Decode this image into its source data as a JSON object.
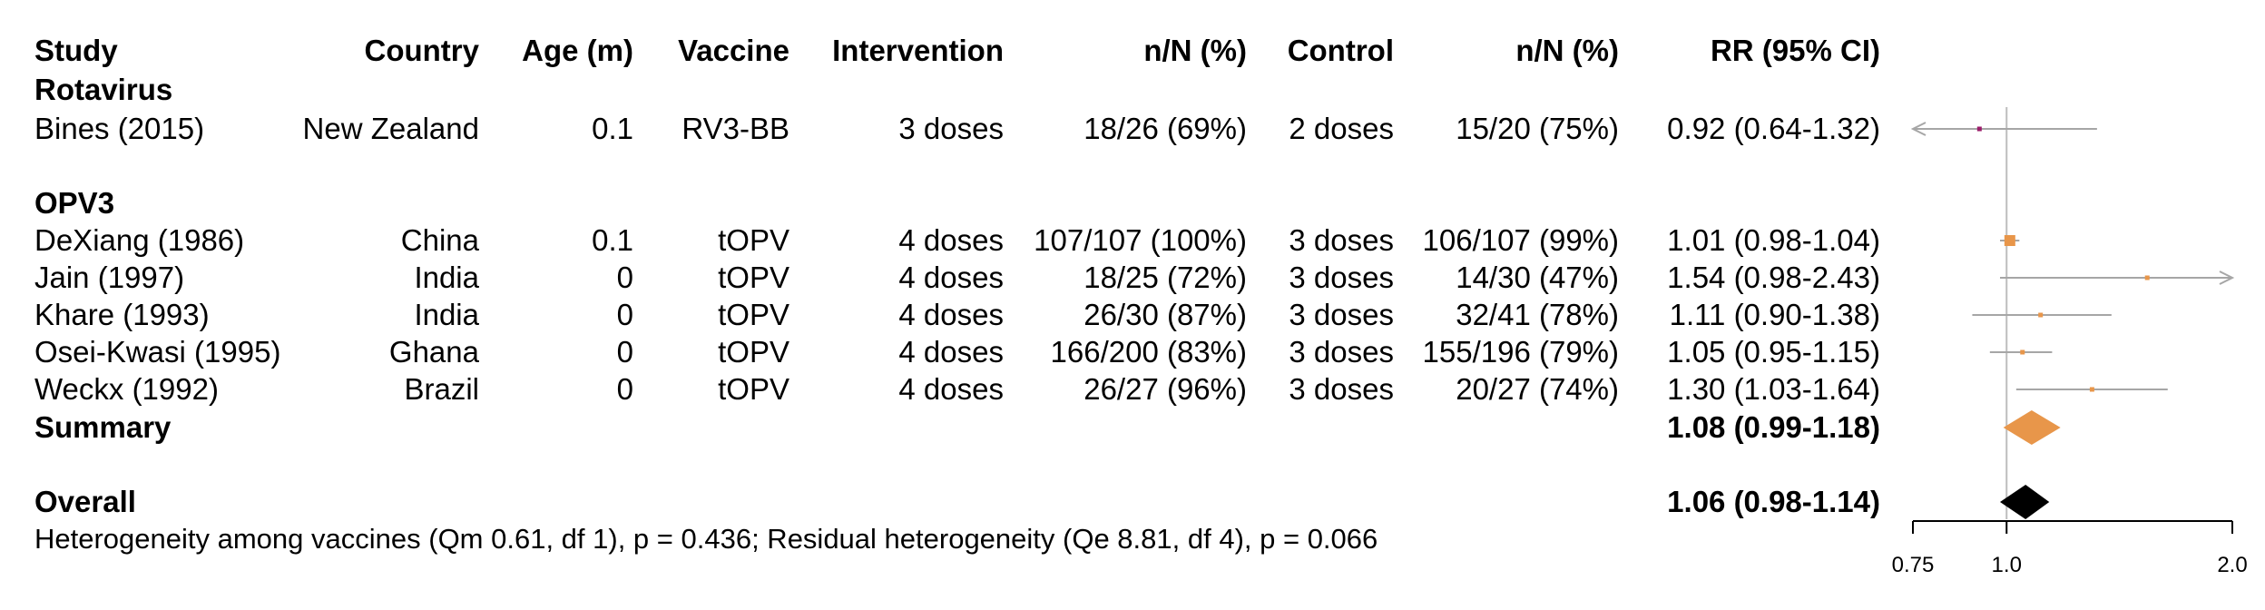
{
  "headers": {
    "study": "Study",
    "country": "Country",
    "age": "Age (m)",
    "vaccine": "Vaccine",
    "intervention": "Intervention",
    "int_nN": "n/N (%)",
    "control": "Control",
    "ctl_nN": "n/N (%)",
    "rr": "RR (95% CI)"
  },
  "groups": [
    {
      "label": "Rotavirus",
      "studies": [
        {
          "study": "Bines (2015)",
          "country": "New Zealand",
          "age": "0.1",
          "vaccine": "RV3-BB",
          "intervention": "3 doses",
          "int_nN": "18/26 (69%)",
          "control": "2 doses",
          "ctl_nN": "15/20 (75%)",
          "rr": "0.92 (0.64-1.32)"
        }
      ]
    },
    {
      "label": "OPV3",
      "studies": [
        {
          "study": "DeXiang (1986)",
          "country": "China",
          "age": "0.1",
          "vaccine": "tOPV",
          "intervention": "4 doses",
          "int_nN": "107/107 (100%)",
          "control": "3 doses",
          "ctl_nN": "106/107 (99%)",
          "rr": "1.01 (0.98-1.04)"
        },
        {
          "study": "Jain (1997)",
          "country": "India",
          "age": "0",
          "vaccine": "tOPV",
          "intervention": "4 doses",
          "int_nN": "18/25 (72%)",
          "control": "3 doses",
          "ctl_nN": "14/30 (47%)",
          "rr": "1.54 (0.98-2.43)"
        },
        {
          "study": "Khare (1993)",
          "country": "India",
          "age": "0",
          "vaccine": "tOPV",
          "intervention": "4 doses",
          "int_nN": "26/30 (87%)",
          "control": "3 doses",
          "ctl_nN": "32/41 (78%)",
          "rr": "1.11 (0.90-1.38)"
        },
        {
          "study": "Osei-Kwasi (1995)",
          "country": "Ghana",
          "age": "0",
          "vaccine": "tOPV",
          "intervention": "4 doses",
          "int_nN": "166/200 (83%)",
          "control": "3 doses",
          "ctl_nN": "155/196 (79%)",
          "rr": "1.05 (0.95-1.15)"
        },
        {
          "study": "Weckx (1992)",
          "country": "Brazil",
          "age": "0",
          "vaccine": "tOPV",
          "intervention": "4 doses",
          "int_nN": "26/27 (96%)",
          "control": "3 doses",
          "ctl_nN": "20/27 (74%)",
          "rr": "1.30 (1.03-1.64)"
        }
      ],
      "summary": {
        "label": "Summary",
        "rr": "1.08 (0.99-1.18)"
      }
    }
  ],
  "overall": {
    "label": "Overall",
    "rr": "1.06 (0.98-1.14)"
  },
  "heterogeneity_note": "Heterogeneity among vaccines (Qm 0.61, df 1), p = 0.436; Residual heterogeneity (Qe 8.81, df 4), p = 0.066",
  "colors": {
    "rotavirus": "#9b1d6a",
    "opv3": "#e8964a",
    "overall": "#000000",
    "ci_line": "#a6a6a6",
    "ref_line": "#bdbdbd",
    "text": "#000000"
  },
  "chart_data": {
    "type": "forest",
    "xlabel": "",
    "xscale": "log",
    "xlim": [
      0.75,
      2.0
    ],
    "xticks": [
      "0.75",
      "1.0",
      "2.0"
    ],
    "reference": 1.0,
    "rows": [
      {
        "study": "Bines (2015)",
        "group": "Rotavirus",
        "rr": 0.92,
        "lower": 0.64,
        "upper": 1.32
      },
      {
        "study": "DeXiang (1986)",
        "group": "OPV3",
        "rr": 1.01,
        "lower": 0.98,
        "upper": 1.04
      },
      {
        "study": "Jain (1997)",
        "group": "OPV3",
        "rr": 1.54,
        "lower": 0.98,
        "upper": 2.43
      },
      {
        "study": "Khare (1993)",
        "group": "OPV3",
        "rr": 1.11,
        "lower": 0.9,
        "upper": 1.38
      },
      {
        "study": "Osei-Kwasi (1995)",
        "group": "OPV3",
        "rr": 1.05,
        "lower": 0.95,
        "upper": 1.15
      },
      {
        "study": "Weckx (1992)",
        "group": "OPV3",
        "rr": 1.3,
        "lower": 1.03,
        "upper": 1.64
      }
    ],
    "summaries": [
      {
        "label": "Summary",
        "group": "OPV3",
        "rr": 1.08,
        "lower": 0.99,
        "upper": 1.18
      },
      {
        "label": "Overall",
        "group": "all",
        "rr": 1.06,
        "lower": 0.98,
        "upper": 1.14
      }
    ]
  }
}
